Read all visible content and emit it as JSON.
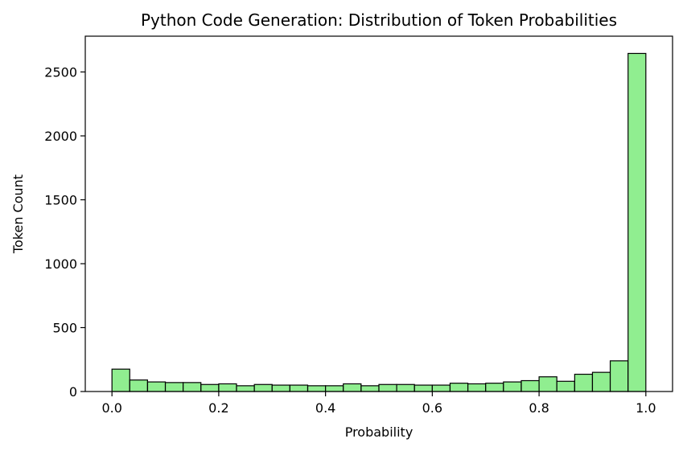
{
  "chart_data": {
    "type": "bar",
    "title": "Python Code Generation: Distribution of Token Probabilities",
    "xlabel": "Probability",
    "ylabel": "Token Count",
    "xlim": [
      -0.05,
      1.05
    ],
    "ylim": [
      0,
      2780
    ],
    "bin_width": 0.0333,
    "bin_starts": [
      0.0,
      0.0333,
      0.0667,
      0.1,
      0.1333,
      0.1667,
      0.2,
      0.2333,
      0.2667,
      0.3,
      0.3333,
      0.3667,
      0.4,
      0.4333,
      0.4667,
      0.5,
      0.5333,
      0.5667,
      0.6,
      0.6333,
      0.6667,
      0.7,
      0.7333,
      0.7667,
      0.8,
      0.8333,
      0.8667,
      0.9,
      0.9333,
      0.9667
    ],
    "values": [
      175,
      90,
      75,
      70,
      70,
      55,
      60,
      45,
      55,
      50,
      50,
      45,
      45,
      60,
      45,
      55,
      55,
      50,
      50,
      65,
      60,
      65,
      75,
      85,
      115,
      80,
      135,
      150,
      240,
      2645
    ],
    "x_ticks": [
      0.0,
      0.2,
      0.4,
      0.6,
      0.8,
      1.0
    ],
    "x_tick_labels": [
      "0.0",
      "0.2",
      "0.4",
      "0.6",
      "0.8",
      "1.0"
    ],
    "y_ticks": [
      0,
      500,
      1000,
      1500,
      2000,
      2500
    ],
    "y_tick_labels": [
      "0",
      "500",
      "1000",
      "1500",
      "2000",
      "2500"
    ],
    "grid": false,
    "bar_color": "#90ee90",
    "edge_color": "#000000"
  }
}
